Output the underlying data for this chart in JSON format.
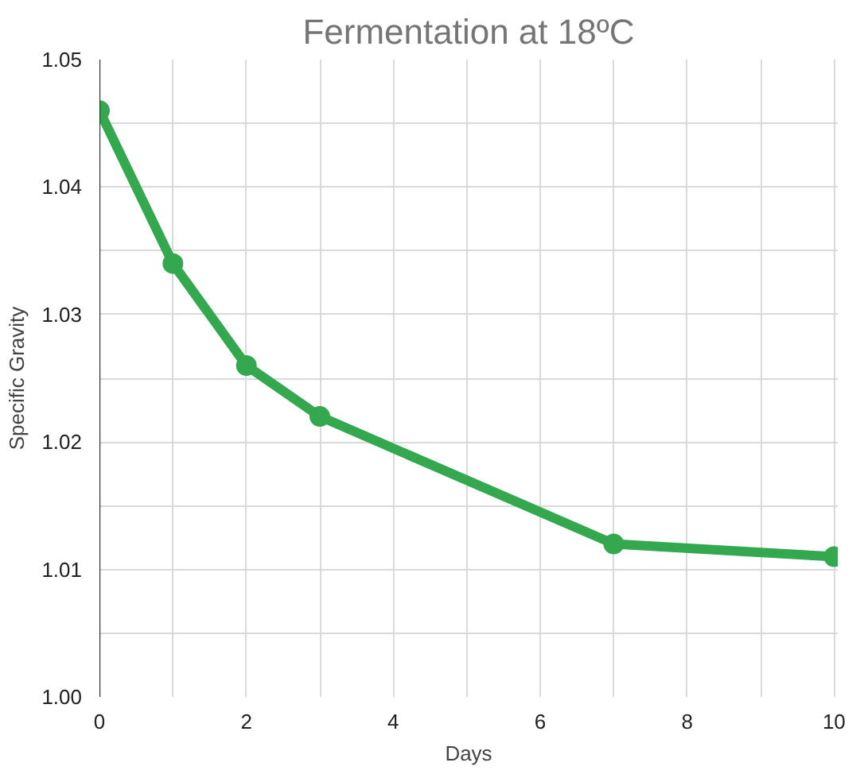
{
  "chart_data": {
    "type": "line",
    "title": "Fermentation at 18ºC",
    "xlabel": "Days",
    "ylabel": "Specific Gravity",
    "x": [
      0,
      1,
      2,
      3,
      7,
      10
    ],
    "series": [
      {
        "color": "#34a84f",
        "values": [
          1.046,
          1.034,
          1.026,
          1.022,
          1.012,
          1.011
        ]
      }
    ],
    "xlim": [
      0,
      10.05
    ],
    "ylim": [
      1.0,
      1.05
    ],
    "xticks": [
      0,
      {
        "value": 1,
        "label": null
      },
      2,
      {
        "value": 3,
        "label": null
      },
      4,
      {
        "value": 5,
        "label": null
      },
      6,
      {
        "value": 7,
        "label": null
      },
      8,
      {
        "value": 9,
        "label": null
      },
      10
    ],
    "yticks": [
      {
        "value": 1.0,
        "label": "1.00"
      },
      {
        "value": 1.005,
        "label": null
      },
      {
        "value": 1.01,
        "label": "1.01"
      },
      {
        "value": 1.015,
        "label": null
      },
      {
        "value": 1.02,
        "label": "1.02"
      },
      {
        "value": 1.025,
        "label": null
      },
      {
        "value": 1.03,
        "label": "1.03"
      },
      {
        "value": 1.035,
        "label": null
      },
      {
        "value": 1.04,
        "label": "1.04"
      },
      {
        "value": 1.045,
        "label": null
      },
      {
        "value": 1.05,
        "label": "1.05"
      }
    ],
    "grid": true,
    "marker": "circle",
    "line_style": "solid"
  }
}
